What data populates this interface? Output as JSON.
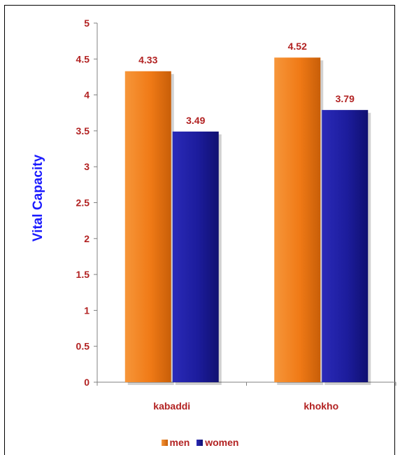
{
  "chart_data": {
    "type": "bar",
    "title": "",
    "xlabel": "",
    "ylabel": "Vital Capacity",
    "categories": [
      "kabaddi",
      "khokho"
    ],
    "series": [
      {
        "name": "men",
        "values": [
          4.33,
          4.52
        ],
        "color": "#f07a16"
      },
      {
        "name": "women",
        "values": [
          3.49,
          3.79
        ],
        "color": "#1c1c9c"
      }
    ],
    "ylim": [
      0,
      5
    ],
    "yticks": [
      "0",
      "0.5",
      "1",
      "1.5",
      "2",
      "2.5",
      "3",
      "3.5",
      "4",
      "4.5",
      "5"
    ],
    "data_labels": [
      [
        "4.33",
        "4.52"
      ],
      [
        "3.49",
        "3.79"
      ]
    ],
    "legend": "bottom",
    "grid": false
  }
}
